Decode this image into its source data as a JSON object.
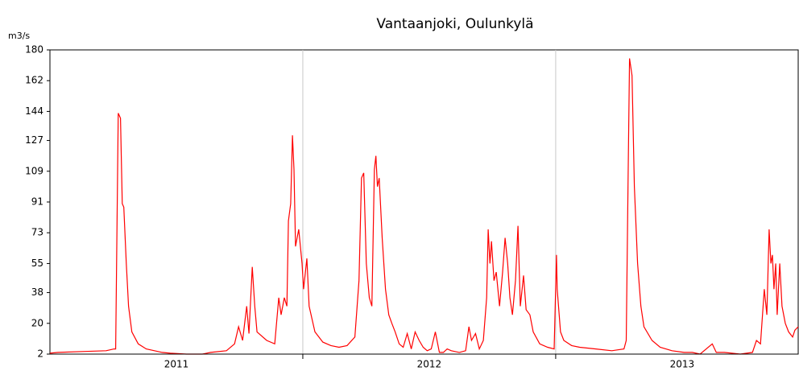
{
  "chart_data": {
    "type": "line",
    "title": "Vantaanjoki, Oulunkylä",
    "y_label": "m3/s",
    "color": "#ff0000",
    "x": [
      2011,
      2011.032,
      2011.127,
      2011.222,
      2011.254,
      2011.26,
      2011.27,
      2011.279,
      2011.286,
      2011.292,
      2011.302,
      2011.311,
      2011.324,
      2011.349,
      2011.381,
      2011.444,
      2011.476,
      2011.54,
      2011.603,
      2011.635,
      2011.698,
      2011.73,
      2011.746,
      2011.762,
      2011.778,
      2011.787,
      2011.8,
      2011.81,
      2011.819,
      2011.857,
      2011.889,
      2011.905,
      2011.914,
      2011.927,
      2011.937,
      2011.943,
      2011.952,
      2011.959,
      2011.965,
      2011.971,
      2011.984,
      2011.997,
      2012.003,
      2012.016,
      2012.025,
      2012.048,
      2012.079,
      2012.111,
      2012.143,
      2012.175,
      2012.206,
      2012.222,
      2012.232,
      2012.241,
      2012.251,
      2012.263,
      2012.273,
      2012.283,
      2012.289,
      2012.295,
      2012.302,
      2012.314,
      2012.327,
      2012.34,
      2012.352,
      2012.365,
      2012.381,
      2012.397,
      2012.413,
      2012.429,
      2012.444,
      2012.46,
      2012.476,
      2012.492,
      2012.508,
      2012.524,
      2012.54,
      2012.556,
      2012.571,
      2012.587,
      2012.619,
      2012.644,
      2012.657,
      2012.667,
      2012.683,
      2012.698,
      2012.714,
      2012.727,
      2012.733,
      2012.74,
      2012.746,
      2012.756,
      2012.765,
      2012.778,
      2012.79,
      2012.8,
      2012.81,
      2012.819,
      2012.829,
      2012.841,
      2012.851,
      2012.86,
      2012.873,
      2012.883,
      2012.898,
      2012.911,
      2012.937,
      2012.968,
      2012.994,
      2013.003,
      2013.006,
      2013.019,
      2013.032,
      2013.063,
      2013.095,
      2013.159,
      2013.222,
      2013.27,
      2013.279,
      2013.286,
      2013.292,
      2013.302,
      2013.311,
      2013.324,
      2013.337,
      2013.349,
      2013.381,
      2013.413,
      2013.46,
      2013.508,
      2013.54,
      2013.571,
      2013.619,
      2013.635,
      2013.667,
      2013.73,
      2013.778,
      2013.794,
      2013.81,
      2013.825,
      2013.835,
      2013.844,
      2013.851,
      2013.857,
      2013.863,
      2013.87,
      2013.876,
      2013.886,
      2013.895,
      2013.908,
      2013.921,
      2013.937,
      2013.946,
      2013.959
    ],
    "values": [
      2.5,
      3,
      3.5,
      4,
      5,
      5,
      143,
      140,
      90,
      88,
      55,
      30,
      15,
      8,
      5,
      3,
      2.5,
      2,
      2,
      3,
      4,
      8,
      18,
      10,
      30,
      14,
      53,
      30,
      15,
      10,
      8,
      35,
      25,
      35,
      30,
      80,
      90,
      130,
      110,
      65,
      75,
      55,
      40,
      58,
      30,
      15,
      9,
      7,
      6,
      7,
      12,
      45,
      105,
      108,
      55,
      35,
      30,
      110,
      118,
      100,
      105,
      70,
      40,
      25,
      20,
      15,
      8,
      6,
      14,
      5,
      15,
      10,
      6,
      4,
      5,
      15,
      3,
      3,
      5,
      4,
      3,
      4,
      18,
      10,
      14,
      5,
      10,
      35,
      75,
      55,
      68,
      45,
      50,
      30,
      50,
      70,
      55,
      35,
      25,
      45,
      77,
      30,
      48,
      28,
      25,
      15,
      8,
      6,
      5,
      60,
      40,
      15,
      10,
      7,
      6,
      5,
      4,
      5,
      10,
      100,
      175,
      165,
      100,
      55,
      30,
      18,
      10,
      6,
      4,
      3,
      3,
      2,
      8,
      3,
      3,
      2,
      3,
      10,
      8,
      40,
      25,
      75,
      55,
      60,
      40,
      55,
      25,
      55,
      30,
      20,
      15,
      12,
      16,
      18
    ],
    "xlim": [
      2011,
      2013.959
    ],
    "x_grid": [
      2012,
      2013
    ],
    "x_labels": [
      {
        "value": 2011.5,
        "label": "2011"
      },
      {
        "value": 2012.5,
        "label": "2012"
      },
      {
        "value": 2013.5,
        "label": "2013"
      }
    ],
    "ylim": [
      2,
      180
    ],
    "yticks": [
      2,
      20,
      38,
      55,
      73,
      91,
      109,
      127,
      144,
      162,
      180
    ]
  }
}
